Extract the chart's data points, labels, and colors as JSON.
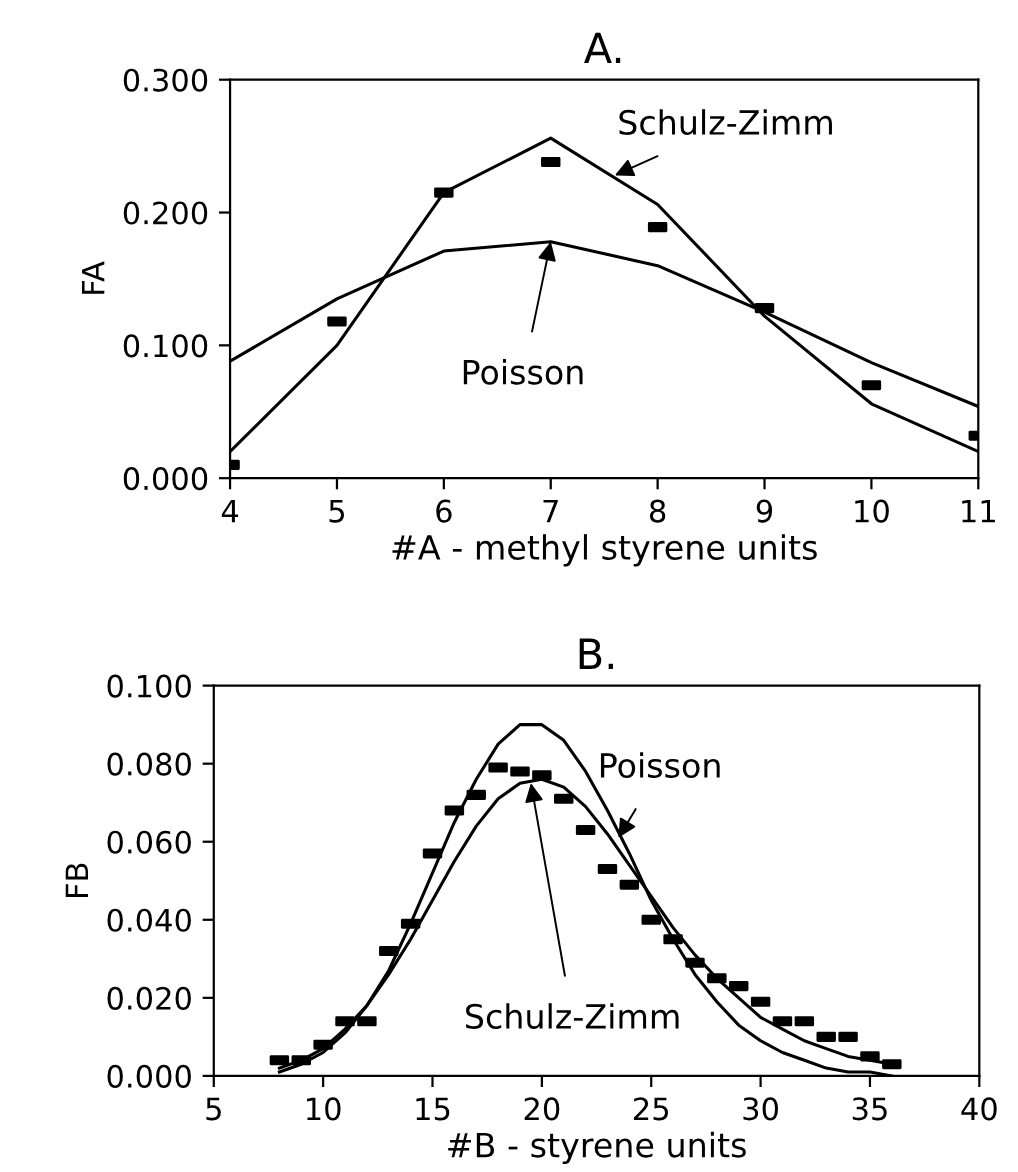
{
  "chart_data": [
    {
      "type": "scatter",
      "title": "A.",
      "xlabel": "#A - methyl styrene units",
      "ylabel": "FA",
      "x": [
        4,
        5,
        6,
        7,
        8,
        9,
        10,
        11
      ],
      "series": [
        {
          "color": "#000000",
          "marker": "square",
          "values": [
            0.01,
            0.118,
            0.215,
            0.238,
            0.189,
            0.128,
            0.07,
            0.032
          ]
        },
        {
          "type": "line",
          "color": "#000000",
          "marker": "none",
          "values": [
            0.02,
            0.1,
            0.215,
            0.256,
            0.206,
            0.122,
            0.056,
            0.02
          ]
        },
        {
          "type": "line",
          "color": "#000000",
          "marker": "none",
          "values": [
            0.088,
            0.135,
            0.171,
            0.178,
            0.16,
            0.125,
            0.087,
            0.054
          ]
        }
      ],
      "annotations": [
        {
          "text": "Schulz-Zimm",
          "x": 7.6,
          "y": 0.228
        },
        {
          "text": "Poisson",
          "x": 7.0,
          "y": 0.178
        }
      ],
      "xlim": [
        4,
        11
      ],
      "xticks": [
        4,
        5,
        6,
        7,
        8,
        9,
        10,
        11
      ],
      "ylim": [
        0,
        0.3
      ],
      "yticks": [
        {
          "value": 0,
          "label": "0.000"
        },
        {
          "value": 0.1,
          "label": "0.100"
        },
        {
          "value": 0.2,
          "label": "0.200"
        },
        {
          "value": 0.3,
          "label": "0.300"
        }
      ],
      "grid": false,
      "line_style": "solid"
    },
    {
      "type": "scatter",
      "title": "B.",
      "xlabel": "#B - styrene units",
      "ylabel": "FB",
      "x": [
        8,
        9,
        10,
        11,
        12,
        13,
        14,
        15,
        16,
        17,
        18,
        19,
        20,
        21,
        22,
        23,
        24,
        25,
        26,
        27,
        28,
        29,
        30,
        31,
        32,
        33,
        34,
        35,
        36
      ],
      "series": [
        {
          "color": "#000000",
          "marker": "square",
          "values": [
            0.004,
            0.004,
            0.008,
            0.014,
            0.014,
            0.032,
            0.039,
            0.057,
            0.068,
            0.072,
            0.079,
            0.078,
            0.077,
            0.071,
            0.063,
            0.053,
            0.049,
            0.04,
            0.035,
            0.029,
            0.025,
            0.023,
            0.019,
            0.014,
            0.014,
            0.01,
            0.01,
            0.005,
            0.003
          ]
        },
        {
          "type": "line",
          "color": "#000000",
          "marker": "none",
          "values": [
            0.001,
            0.003,
            0.006,
            0.011,
            0.018,
            0.027,
            0.039,
            0.052,
            0.065,
            0.076,
            0.085,
            0.09,
            0.09,
            0.086,
            0.078,
            0.068,
            0.057,
            0.045,
            0.035,
            0.026,
            0.019,
            0.013,
            0.009,
            0.006,
            0.004,
            0.002,
            0.001,
            0.001,
            0.0
          ]
        },
        {
          "type": "line",
          "color": "#000000",
          "marker": "none",
          "values": [
            0.002,
            0.004,
            0.007,
            0.012,
            0.018,
            0.026,
            0.035,
            0.045,
            0.055,
            0.064,
            0.071,
            0.075,
            0.076,
            0.074,
            0.069,
            0.062,
            0.054,
            0.046,
            0.038,
            0.031,
            0.025,
            0.02,
            0.015,
            0.012,
            0.009,
            0.007,
            0.005,
            0.004,
            0.003
          ]
        }
      ],
      "annotations": [
        {
          "text": "Poisson",
          "x": 23.5,
          "y": 0.061
        },
        {
          "text": "Schulz-Zimm",
          "x": 19.5,
          "y": 0.075
        }
      ],
      "xlim": [
        5,
        40
      ],
      "xticks": [
        5,
        10,
        15,
        20,
        25,
        30,
        35,
        40
      ],
      "ylim": [
        0,
        0.1
      ],
      "yticks": [
        {
          "value": 0,
          "label": "0.000"
        },
        {
          "value": 0.02,
          "label": "0.020"
        },
        {
          "value": 0.04,
          "label": "0.040"
        },
        {
          "value": 0.06,
          "label": "0.060"
        },
        {
          "value": 0.08,
          "label": "0.080"
        },
        {
          "value": 0.1,
          "label": "0.100"
        }
      ],
      "grid": false,
      "line_style": "solid"
    }
  ]
}
